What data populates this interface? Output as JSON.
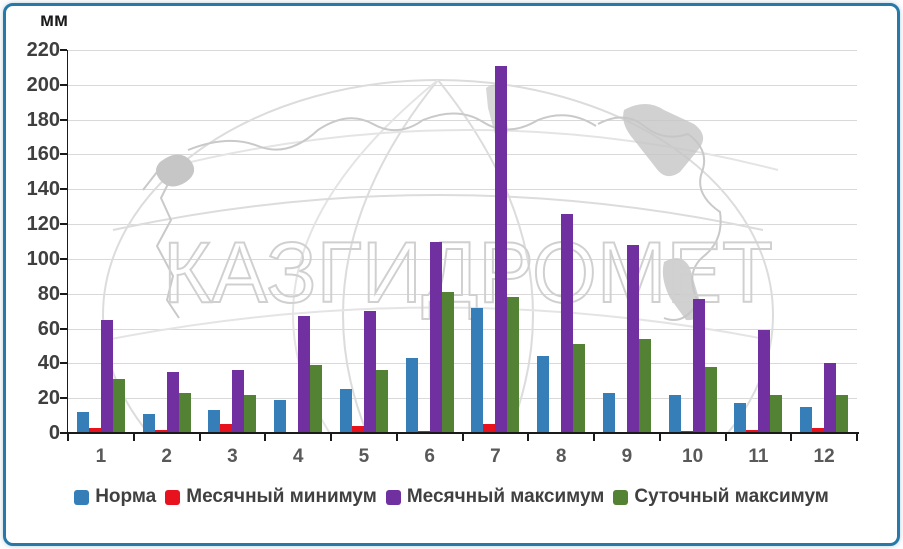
{
  "frame": {
    "border_color": "#2878A8",
    "background": "#FFFFFF"
  },
  "chart_data": {
    "type": "bar",
    "unit_label": "мм",
    "categories": [
      "1",
      "2",
      "3",
      "4",
      "5",
      "6",
      "7",
      "8",
      "9",
      "10",
      "11",
      "12"
    ],
    "series": [
      {
        "name": "Норма",
        "color": "#357EB8",
        "values": [
          12,
          11,
          13,
          19,
          25,
          43,
          72,
          44,
          23,
          22,
          17,
          15
        ]
      },
      {
        "name": "Месячный минимум",
        "color": "#E8121E",
        "values": [
          3,
          2,
          5,
          0,
          4,
          1,
          5,
          0,
          0,
          1,
          2,
          3
        ]
      },
      {
        "name": "Месячный максимум",
        "color": "#7030A0",
        "values": [
          65,
          35,
          36,
          67,
          70,
          110,
          211,
          126,
          108,
          77,
          59,
          40
        ]
      },
      {
        "name": "Суточный максимум",
        "color": "#548235",
        "values": [
          31,
          23,
          22,
          39,
          36,
          81,
          78,
          51,
          54,
          38,
          22,
          22
        ]
      }
    ],
    "ylim": [
      0,
      220
    ],
    "ytick_step": 20,
    "grid": true,
    "legend_position": "bottom",
    "watermark_text": "КАЗГИДРОМЕТ",
    "colors": {
      "grid": "#D9D9D9",
      "axis": "#1A1A1A",
      "y_tick_label": "#3F3F3F",
      "x_tick_label": "#595959",
      "legend_text": "#404040",
      "watermark": "#D3D3D3"
    }
  }
}
